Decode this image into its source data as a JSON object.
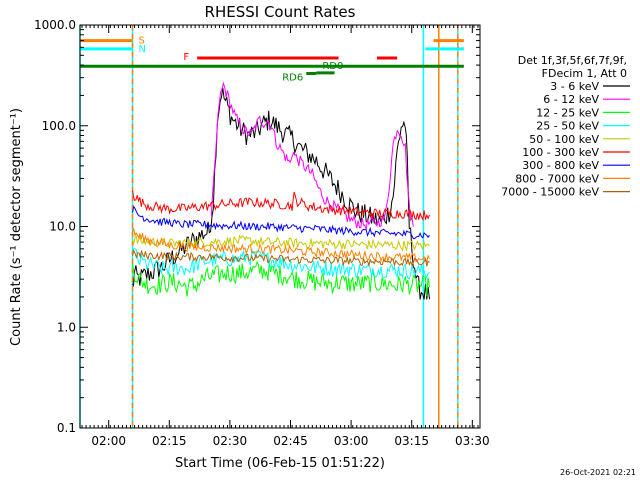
{
  "chart_data": {
    "type": "line",
    "title": "RHESSI Count Rates",
    "xlabel": "Start Time (06-Feb-15 01:51:22)",
    "ylabel": "Count Rate (s⁻¹ detector segment⁻¹)",
    "yscale": "log",
    "ylim": [
      0.1,
      1000
    ],
    "xlim_minutes": [
      1.5,
      100.5
    ],
    "x_ticks": [
      {
        "label": "02:00",
        "m": 8.6
      },
      {
        "label": "02:15",
        "m": 23.6
      },
      {
        "label": "02:30",
        "m": 38.6
      },
      {
        "label": "02:45",
        "m": 53.6
      },
      {
        "label": "03:00",
        "m": 68.6
      },
      {
        "label": "03:15",
        "m": 83.6
      },
      {
        "label": "03:30",
        "m": 98.6
      }
    ],
    "y_ticks": [
      {
        "label": "1000.0",
        "v": 1000
      },
      {
        "label": "100.0",
        "v": 100
      },
      {
        "label": "10.0",
        "v": 10
      },
      {
        "label": "1.0",
        "v": 1
      },
      {
        "label": "0.1",
        "v": 0.1
      }
    ],
    "legend_title": [
      "Det 1f,3f,5f,6f,7f,9f,",
      "FDecim 1, Att 0"
    ],
    "legend_position": "right",
    "series": [
      {
        "name": "3 - 6 keV",
        "color": "#000000",
        "points": [
          [
            14.5,
            2.5
          ],
          [
            15,
            3.3
          ],
          [
            16,
            3.0
          ],
          [
            18,
            3.3
          ],
          [
            20,
            3.6
          ],
          [
            22,
            4.0
          ],
          [
            24,
            4.8
          ],
          [
            26,
            5.5
          ],
          [
            28,
            6.5
          ],
          [
            30,
            7.5
          ],
          [
            32,
            8.5
          ],
          [
            33.5,
            9
          ],
          [
            34.5,
            18
          ],
          [
            35.5,
            120
          ],
          [
            36.5,
            220
          ],
          [
            37.5,
            175
          ],
          [
            39,
            120
          ],
          [
            41,
            95
          ],
          [
            43,
            80
          ],
          [
            45,
            85
          ],
          [
            47,
            105
          ],
          [
            48.5,
            115
          ],
          [
            50,
            100
          ],
          [
            52,
            85
          ],
          [
            54,
            75
          ],
          [
            56,
            60
          ],
          [
            58,
            52
          ],
          [
            60,
            45
          ],
          [
            62,
            35
          ],
          [
            64,
            28
          ],
          [
            66,
            22
          ],
          [
            68,
            17
          ],
          [
            70,
            14
          ],
          [
            72,
            13
          ],
          [
            74,
            12
          ],
          [
            76,
            11
          ],
          [
            78,
            14
          ],
          [
            79,
            20
          ],
          [
            80,
            55
          ],
          [
            81,
            100
          ],
          [
            82,
            105
          ],
          [
            82.5,
            40
          ],
          [
            83,
            10
          ],
          [
            84,
            5
          ],
          [
            85,
            2.6
          ],
          [
            86,
            2.3
          ],
          [
            87,
            2.2
          ],
          [
            88,
            1.9
          ]
        ]
      },
      {
        "name": "6 - 12 keV",
        "color": "#ff00ff",
        "points": [
          [
            34,
            12
          ],
          [
            35,
            50
          ],
          [
            36,
            180
          ],
          [
            37,
            255
          ],
          [
            38,
            200
          ],
          [
            40,
            120
          ],
          [
            42,
            90
          ],
          [
            44,
            82
          ],
          [
            45,
            100
          ],
          [
            46,
            115
          ],
          [
            47,
            108
          ],
          [
            48,
            112
          ],
          [
            49,
            100
          ],
          [
            50,
            70
          ],
          [
            52,
            52
          ],
          [
            53.5,
            42
          ],
          [
            54,
            55
          ],
          [
            55,
            48
          ],
          [
            57,
            40
          ],
          [
            59,
            33
          ],
          [
            60.5,
            24
          ],
          [
            62,
            19
          ],
          [
            64,
            16
          ],
          [
            66,
            14
          ],
          [
            68,
            12
          ],
          [
            70,
            11
          ],
          [
            72,
            10.5
          ],
          [
            75,
            11
          ],
          [
            77,
            12
          ],
          [
            78,
            25
          ],
          [
            79,
            65
          ],
          [
            80,
            95
          ],
          [
            81,
            85
          ],
          [
            82,
            60
          ],
          [
            83,
            15
          ],
          [
            84,
            10
          ]
        ]
      },
      {
        "name": "12 - 25 keV",
        "color": "#00ff00",
        "points": [
          [
            14.5,
            4.0
          ],
          [
            16,
            3.0
          ],
          [
            18,
            2.7
          ],
          [
            20,
            2.6
          ],
          [
            22,
            2.7
          ],
          [
            24,
            2.8
          ],
          [
            26,
            2.7
          ],
          [
            28,
            2.5
          ],
          [
            30,
            2.6
          ],
          [
            32,
            3.0
          ],
          [
            34,
            3.2
          ],
          [
            36,
            3.3
          ],
          [
            38,
            3.5
          ],
          [
            40,
            3.4
          ],
          [
            42,
            3.5
          ],
          [
            44,
            3.6
          ],
          [
            46,
            3.7
          ],
          [
            48,
            3.6
          ],
          [
            50,
            3.4
          ],
          [
            52,
            3.3
          ],
          [
            54,
            3.1
          ],
          [
            56,
            3.0
          ],
          [
            58,
            2.9
          ],
          [
            60,
            2.8
          ],
          [
            62,
            2.8
          ],
          [
            64,
            2.7
          ],
          [
            66,
            2.8
          ],
          [
            68,
            2.7
          ],
          [
            70,
            2.7
          ],
          [
            72,
            2.7
          ],
          [
            74,
            2.8
          ],
          [
            76,
            2.7
          ],
          [
            78,
            2.7
          ],
          [
            80,
            2.6
          ],
          [
            82,
            2.7
          ],
          [
            84,
            2.6
          ],
          [
            86,
            2.6
          ],
          [
            88,
            2.5
          ]
        ]
      },
      {
        "name": "25 - 50 keV",
        "color": "#00ffff",
        "points": [
          [
            14.5,
            6.0
          ],
          [
            16,
            4.6
          ],
          [
            18,
            4.3
          ],
          [
            20,
            4.0
          ],
          [
            22,
            3.8
          ],
          [
            24,
            3.8
          ],
          [
            26,
            3.9
          ],
          [
            28,
            3.8
          ],
          [
            30,
            4.1
          ],
          [
            32,
            4.5
          ],
          [
            34,
            4.6
          ],
          [
            36,
            4.7
          ],
          [
            38,
            4.8
          ],
          [
            40,
            4.7
          ],
          [
            42,
            4.9
          ],
          [
            44,
            5.0
          ],
          [
            46,
            4.9
          ],
          [
            48,
            4.7
          ],
          [
            50,
            4.6
          ],
          [
            52,
            4.4
          ],
          [
            54,
            4.2
          ],
          [
            56,
            4.1
          ],
          [
            58,
            4.0
          ],
          [
            60,
            3.9
          ],
          [
            62,
            3.9
          ],
          [
            64,
            3.8
          ],
          [
            66,
            3.8
          ],
          [
            68,
            3.8
          ],
          [
            70,
            3.7
          ],
          [
            72,
            3.7
          ],
          [
            74,
            3.8
          ],
          [
            76,
            3.7
          ],
          [
            78,
            3.7
          ],
          [
            80,
            3.7
          ],
          [
            82,
            3.6
          ],
          [
            84,
            3.6
          ],
          [
            86,
            3.6
          ],
          [
            88,
            3.5
          ]
        ]
      },
      {
        "name": "50 - 100 keV",
        "color": "#c8c800",
        "points": [
          [
            14.5,
            7.5
          ],
          [
            16,
            7.2
          ],
          [
            20,
            7.0
          ],
          [
            24,
            6.8
          ],
          [
            28,
            6.9
          ],
          [
            32,
            7.0
          ],
          [
            36,
            7.1
          ],
          [
            40,
            7.2
          ],
          [
            44,
            7.2
          ],
          [
            48,
            7.0
          ],
          [
            52,
            6.9
          ],
          [
            56,
            6.8
          ],
          [
            60,
            6.8
          ],
          [
            64,
            6.7
          ],
          [
            68,
            6.7
          ],
          [
            72,
            6.6
          ],
          [
            76,
            6.6
          ],
          [
            80,
            6.5
          ],
          [
            84,
            6.5
          ],
          [
            88,
            6.4
          ]
        ]
      },
      {
        "name": "100 - 300 keV",
        "color": "#ff0000",
        "points": [
          [
            14.5,
            24
          ],
          [
            15,
            20
          ],
          [
            17,
            17
          ],
          [
            19,
            16
          ],
          [
            21,
            15.5
          ],
          [
            23,
            15
          ],
          [
            25,
            15
          ],
          [
            27,
            15
          ],
          [
            30,
            15.5
          ],
          [
            33,
            16
          ],
          [
            36,
            16.5
          ],
          [
            40,
            17
          ],
          [
            44,
            17.5
          ],
          [
            48,
            17
          ],
          [
            52,
            16.5
          ],
          [
            54,
            16
          ],
          [
            54.5,
            20
          ],
          [
            55,
            18
          ],
          [
            58,
            16
          ],
          [
            62,
            15
          ],
          [
            66,
            14.5
          ],
          [
            70,
            14
          ],
          [
            74,
            13.5
          ],
          [
            78,
            13.5
          ],
          [
            82,
            13.5
          ],
          [
            86,
            13
          ],
          [
            88,
            13
          ]
        ]
      },
      {
        "name": "300 - 800 keV",
        "color": "#0000ff",
        "points": [
          [
            14.5,
            15
          ],
          [
            16,
            13
          ],
          [
            18,
            12
          ],
          [
            20,
            11.5
          ],
          [
            22,
            11
          ],
          [
            24,
            11
          ],
          [
            26,
            10.5
          ],
          [
            28,
            10.5
          ],
          [
            30,
            10.5
          ],
          [
            32,
            10.5
          ],
          [
            36,
            10.2
          ],
          [
            40,
            10.2
          ],
          [
            44,
            10
          ],
          [
            48,
            10
          ],
          [
            52,
            9.8
          ],
          [
            56,
            9.6
          ],
          [
            60,
            9.5
          ],
          [
            64,
            9.2
          ],
          [
            68,
            9.0
          ],
          [
            72,
            8.8
          ],
          [
            76,
            8.6
          ],
          [
            80,
            8.5
          ],
          [
            84,
            8.3
          ],
          [
            88,
            8.2
          ]
        ]
      },
      {
        "name": "800 - 7000 keV",
        "color": "#ff8000",
        "points": [
          [
            14.5,
            9
          ],
          [
            16,
            8
          ],
          [
            18,
            7.5
          ],
          [
            20,
            7.0
          ],
          [
            22,
            6.8
          ],
          [
            24,
            6.5
          ],
          [
            26,
            6.4
          ],
          [
            28,
            6.3
          ],
          [
            30,
            6.2
          ],
          [
            34,
            6.2
          ],
          [
            38,
            6.1
          ],
          [
            42,
            6.0
          ],
          [
            46,
            6.0
          ],
          [
            50,
            5.9
          ],
          [
            54,
            5.8
          ],
          [
            58,
            5.6
          ],
          [
            62,
            5.5
          ],
          [
            66,
            5.4
          ],
          [
            70,
            5.2
          ],
          [
            74,
            5.1
          ],
          [
            78,
            5.0
          ],
          [
            82,
            4.9
          ],
          [
            86,
            4.8
          ],
          [
            88,
            4.8
          ]
        ]
      },
      {
        "name": "7000 - 15000 keV",
        "color": "#b06000",
        "points": [
          [
            14.5,
            5.3
          ],
          [
            18,
            5.2
          ],
          [
            22,
            5.1
          ],
          [
            26,
            5.0
          ],
          [
            30,
            5.0
          ],
          [
            34,
            5.0
          ],
          [
            38,
            4.9
          ],
          [
            42,
            4.9
          ],
          [
            46,
            4.8
          ],
          [
            50,
            4.8
          ],
          [
            54,
            4.7
          ],
          [
            58,
            4.7
          ],
          [
            62,
            4.6
          ],
          [
            66,
            4.6
          ],
          [
            70,
            4.5
          ],
          [
            74,
            4.5
          ],
          [
            78,
            4.5
          ],
          [
            82,
            4.4
          ],
          [
            86,
            4.4
          ],
          [
            88,
            4.4
          ]
        ]
      }
    ],
    "vlines": [
      {
        "m": 1.5,
        "color": "#00ffff",
        "style": "solid"
      },
      {
        "m": 14.5,
        "color": "#00ffff",
        "style": "solid"
      },
      {
        "m": 14.5,
        "color": "#ff8000",
        "style": "dashed"
      },
      {
        "m": 86.5,
        "color": "#00ffff",
        "style": "solid"
      },
      {
        "m": 90.3,
        "color": "#ff8000",
        "style": "solid"
      },
      {
        "m": 95.0,
        "color": "#00ffff",
        "style": "solid"
      },
      {
        "m": 95.0,
        "color": "#ff8000",
        "style": "dashed"
      }
    ],
    "flag_bars": [
      {
        "label": "S",
        "label_color": "#ff8000",
        "color": "#ff8000",
        "v": 700,
        "ranges": [
          [
            1.5,
            14.5
          ],
          [
            89,
            96.5
          ]
        ]
      },
      {
        "label": "N",
        "label_color": "#00ffff",
        "color": "#00ffff",
        "v": 580,
        "ranges": [
          [
            1.5,
            14.5
          ],
          [
            87,
            96.5
          ]
        ]
      },
      {
        "label": "F",
        "label_color": "#ff0000",
        "color": "#ff0000",
        "v": 470,
        "ranges": [
          [
            30.5,
            65.5
          ],
          [
            75,
            80
          ]
        ]
      },
      {
        "label": "",
        "label_color": "#008000",
        "color": "#008000",
        "v": 390,
        "ranges": [
          [
            1.5,
            96.5
          ]
        ]
      },
      {
        "label": "RD0",
        "label_color": "#008000",
        "color": "#008000",
        "v": 335,
        "ranges": [
          [
            60,
            64.5
          ]
        ]
      },
      {
        "label": "RD6",
        "label_color": "#008000",
        "color": "#008000",
        "v": 330,
        "ranges": [
          [
            57.5,
            60
          ]
        ]
      }
    ]
  },
  "footer": {
    "timestamp": "26-Oct-2021 02:21"
  }
}
